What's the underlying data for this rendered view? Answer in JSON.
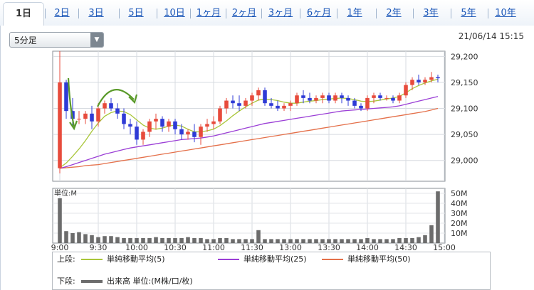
{
  "tabs": [
    "1日",
    "2日",
    "3日",
    "5日",
    "10日",
    "1ヶ月",
    "2ヶ月",
    "3ヶ月",
    "6ヶ月",
    "1年",
    "2年",
    "3年",
    "5年",
    "10年"
  ],
  "active_tab": "1日",
  "interval_select": "5分足",
  "timestamp": "21/06/14 15:15",
  "colors": {
    "up": "#e74b3c",
    "down": "#2f3bd6",
    "ma5": "#a9c63a",
    "ma25": "#9b3fd6",
    "ma50": "#e4704a",
    "volume": "#6c6c6c",
    "annotation": "#5a9a2a"
  },
  "chart_data": {
    "type": "candlestick",
    "x_ticks": [
      "9:00",
      "9:30",
      "10:00",
      "10:30",
      "11:00",
      "11:30",
      "13:00",
      "13:30",
      "14:00",
      "14:30",
      "15:00"
    ],
    "y_ticks": [
      "29,200",
      "29,150",
      "29,100",
      "29,050",
      "29,000"
    ],
    "ylim": [
      28960,
      29210
    ],
    "candles": [
      [
        28985,
        29210,
        28975,
        29150
      ],
      [
        29150,
        29155,
        29080,
        29095
      ],
      [
        29095,
        29120,
        29065,
        29080
      ],
      [
        29080,
        29095,
        29070,
        29080
      ],
      [
        29080,
        29095,
        29070,
        29090
      ],
      [
        29090,
        29105,
        29060,
        29075
      ],
      [
        29075,
        29110,
        29065,
        29100
      ],
      [
        29100,
        29115,
        29090,
        29110
      ],
      [
        29110,
        29120,
        29095,
        29100
      ],
      [
        29100,
        29110,
        29080,
        29090
      ],
      [
        29090,
        29100,
        29060,
        29070
      ],
      [
        29070,
        29080,
        29050,
        29065
      ],
      [
        29065,
        29075,
        29030,
        29040
      ],
      [
        29040,
        29060,
        29030,
        29055
      ],
      [
        29055,
        29080,
        29045,
        29075
      ],
      [
        29075,
        29090,
        29060,
        29080
      ],
      [
        29080,
        29085,
        29055,
        29065
      ],
      [
        29065,
        29080,
        29055,
        29075
      ],
      [
        29075,
        29080,
        29050,
        29060
      ],
      [
        29060,
        29070,
        29040,
        29050
      ],
      [
        29050,
        29060,
        29040,
        29055
      ],
      [
        29055,
        29070,
        29035,
        29045
      ],
      [
        29045,
        29070,
        29030,
        29065
      ],
      [
        29065,
        29080,
        29055,
        29070
      ],
      [
        29070,
        29085,
        29060,
        29075
      ],
      [
        29075,
        29105,
        29070,
        29100
      ],
      [
        29100,
        29120,
        29090,
        29115
      ],
      [
        29115,
        29125,
        29100,
        29110
      ],
      [
        29110,
        29125,
        29095,
        29105
      ],
      [
        29105,
        29120,
        29100,
        29115
      ],
      [
        29115,
        29130,
        29105,
        29125
      ],
      [
        29125,
        29140,
        29115,
        29135
      ],
      [
        29135,
        29140,
        29105,
        29110
      ],
      [
        29110,
        29120,
        29100,
        29105
      ],
      [
        29105,
        29115,
        29095,
        29100
      ],
      [
        29100,
        29110,
        29095,
        29105
      ],
      [
        29105,
        29115,
        29095,
        29110
      ],
      [
        29110,
        29130,
        29105,
        29125
      ],
      [
        29125,
        29135,
        29110,
        29120
      ],
      [
        29120,
        29130,
        29110,
        29115
      ],
      [
        29115,
        29125,
        29110,
        29120
      ],
      [
        29120,
        29130,
        29110,
        29125
      ],
      [
        29125,
        29130,
        29110,
        29115
      ],
      [
        29115,
        29130,
        29110,
        29125
      ],
      [
        29125,
        29130,
        29110,
        29120
      ],
      [
        29120,
        29125,
        29105,
        29115
      ],
      [
        29115,
        29120,
        29100,
        29105
      ],
      [
        29105,
        29110,
        29095,
        29100
      ],
      [
        29100,
        29125,
        29095,
        29120
      ],
      [
        29120,
        29130,
        29110,
        29125
      ],
      [
        29125,
        29130,
        29115,
        29120
      ],
      [
        29120,
        29125,
        29115,
        29120
      ],
      [
        29120,
        29125,
        29110,
        29115
      ],
      [
        29115,
        29130,
        29110,
        29125
      ],
      [
        29125,
        29150,
        29120,
        29145
      ],
      [
        29145,
        29160,
        29135,
        29155
      ],
      [
        29155,
        29165,
        29145,
        29150
      ],
      [
        29150,
        29160,
        29145,
        29155
      ],
      [
        29155,
        29170,
        29150,
        29160
      ],
      [
        29160,
        29165,
        29150,
        29158
      ]
    ],
    "ma5": [
      28986,
      28995,
      29008,
      29022,
      29038,
      29056,
      29072,
      29085,
      29092,
      29095,
      29094,
      29088,
      29078,
      29068,
      29062,
      29060,
      29062,
      29066,
      29068,
      29066,
      29060,
      29055,
      29055,
      29057,
      29060,
      29067,
      29076,
      29086,
      29095,
      29103,
      29110,
      29116,
      29118,
      29117,
      29115,
      29112,
      29110,
      29110,
      29112,
      29114,
      29115,
      29117,
      29118,
      29119,
      29120,
      29119,
      29117,
      29114,
      29113,
      29114,
      29116,
      29118,
      29120,
      29123,
      29130,
      29138,
      29144,
      29149,
      29153,
      29156
    ],
    "ma25": [
      28985,
      28988,
      28992,
      28996,
      29000,
      29004,
      29008,
      29012,
      29015,
      29018,
      29021,
      29024,
      29026,
      29028,
      29030,
      29032,
      29034,
      29036,
      29038,
      29040,
      29041,
      29042,
      29043,
      29045,
      29047,
      29050,
      29053,
      29056,
      29059,
      29062,
      29065,
      29068,
      29071,
      29073,
      29075,
      29077,
      29079,
      29081,
      29083,
      29085,
      29087,
      29089,
      29091,
      29093,
      29095,
      29096,
      29097,
      29098,
      29099,
      29100,
      29101,
      29102,
      29103,
      29105,
      29108,
      29111,
      29114,
      29117,
      29120,
      29123
    ],
    "ma50": [
      28985,
      28986,
      28987,
      28988,
      28990,
      28991,
      28992,
      28994,
      28996,
      28998,
      29000,
      29002,
      29004,
      29006,
      29008,
      29010,
      29012,
      29014,
      29016,
      29018,
      29020,
      29022,
      29024,
      29026,
      29028,
      29030,
      29032,
      29034,
      29036,
      29038,
      29040,
      29042,
      29044,
      29046,
      29048,
      29050,
      29052,
      29054,
      29056,
      29058,
      29060,
      29062,
      29064,
      29066,
      29068,
      29070,
      29072,
      29074,
      29076,
      29078,
      29080,
      29082,
      29084,
      29086,
      29088,
      29090,
      29092,
      29094,
      29097,
      29100
    ],
    "volume_unit_label": "単位:M",
    "volume_ticks": [
      "50M",
      "40M",
      "30M",
      "20M",
      "10M"
    ],
    "volume_ylim": [
      0,
      55
    ],
    "volume": [
      45,
      12,
      10,
      11,
      9,
      8,
      6,
      7,
      7,
      6,
      5,
      5,
      5,
      5,
      5,
      6,
      5,
      5,
      5,
      5,
      6,
      5,
      5,
      4,
      4,
      5,
      5,
      4,
      4,
      4,
      4,
      13,
      4,
      4,
      4,
      4,
      4,
      4,
      4,
      4,
      4,
      4,
      4,
      4,
      4,
      4,
      4,
      4,
      5,
      4,
      4,
      4,
      4,
      5,
      5,
      5,
      6,
      8,
      18,
      52
    ]
  },
  "legend": {
    "upper_label": "上段:",
    "lower_label": "下段:",
    "ma5": "単純移動平均(5)",
    "ma25": "単純移動平均(25)",
    "ma50": "単純移動平均(50)",
    "volume": "出来高 単位:(M株/口/枚)"
  }
}
